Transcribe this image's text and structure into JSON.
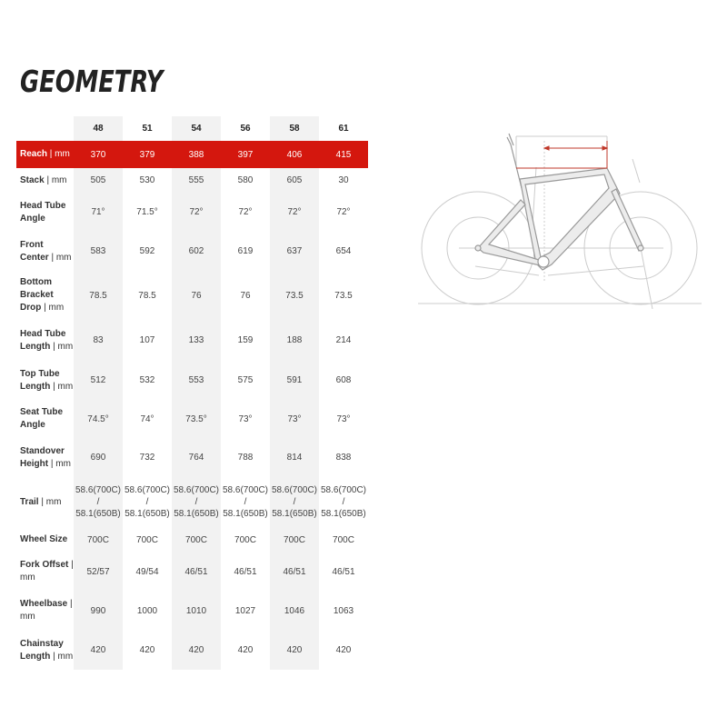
{
  "title": "GEOMETRY",
  "accent": "#d4170e",
  "sizes": [
    "48",
    "51",
    "54",
    "56",
    "58",
    "61"
  ],
  "rows": [
    {
      "label": "Reach",
      "unit": "| mm",
      "values": [
        "370",
        "379",
        "388",
        "397",
        "406",
        "415"
      ],
      "highlighted": true
    },
    {
      "label": "Stack",
      "unit": "| mm",
      "values": [
        "505",
        "530",
        "555",
        "580",
        "605",
        "30"
      ]
    },
    {
      "label": "Head Tube Angle",
      "unit": "",
      "values": [
        "71°",
        "71.5°",
        "72°",
        "72°",
        "72°",
        "72°"
      ]
    },
    {
      "label": "Front Center",
      "unit": "| mm",
      "values": [
        "583",
        "592",
        "602",
        "619",
        "637",
        "654"
      ]
    },
    {
      "label": "Bottom Bracket Drop",
      "unit": "| mm",
      "values": [
        "78.5",
        "78.5",
        "76",
        "76",
        "73.5",
        "73.5"
      ]
    },
    {
      "label": "Head Tube Length",
      "unit": "| mm",
      "values": [
        "83",
        "107",
        "133",
        "159",
        "188",
        "214"
      ]
    },
    {
      "label": "Top Tube Length",
      "unit": "| mm",
      "values": [
        "512",
        "532",
        "553",
        "575",
        "591",
        "608"
      ]
    },
    {
      "label": "Seat Tube Angle",
      "unit": "",
      "values": [
        "74.5°",
        "74°",
        "73.5°",
        "73°",
        "73°",
        "73°"
      ]
    },
    {
      "label": "Standover Height",
      "unit": "| mm",
      "values": [
        "690",
        "732",
        "764",
        "788",
        "814",
        "838"
      ]
    },
    {
      "label": "Trail",
      "unit": "| mm",
      "values": [
        "58.6(700C) / 58.1(650B)",
        "58.6(700C) / 58.1(650B)",
        "58.6(700C) / 58.1(650B)",
        "58.6(700C) / 58.1(650B)",
        "58.6(700C) / 58.1(650B)",
        "58.6(700C) / 58.1(650B)"
      ]
    },
    {
      "label": "Wheel Size",
      "unit": "",
      "values": [
        "700C",
        "700C",
        "700C",
        "700C",
        "700C",
        "700C"
      ]
    },
    {
      "label": "Fork Offset",
      "unit": "| mm",
      "values": [
        "52/57",
        "49/54",
        "46/51",
        "46/51",
        "46/51",
        "46/51"
      ]
    },
    {
      "label": "Wheelbase",
      "unit": "| mm",
      "values": [
        "990",
        "1000",
        "1010",
        "1027",
        "1046",
        "1063"
      ]
    },
    {
      "label": "Chainstay Length",
      "unit": "| mm",
      "values": [
        "420",
        "420",
        "420",
        "420",
        "420",
        "420"
      ]
    }
  ]
}
